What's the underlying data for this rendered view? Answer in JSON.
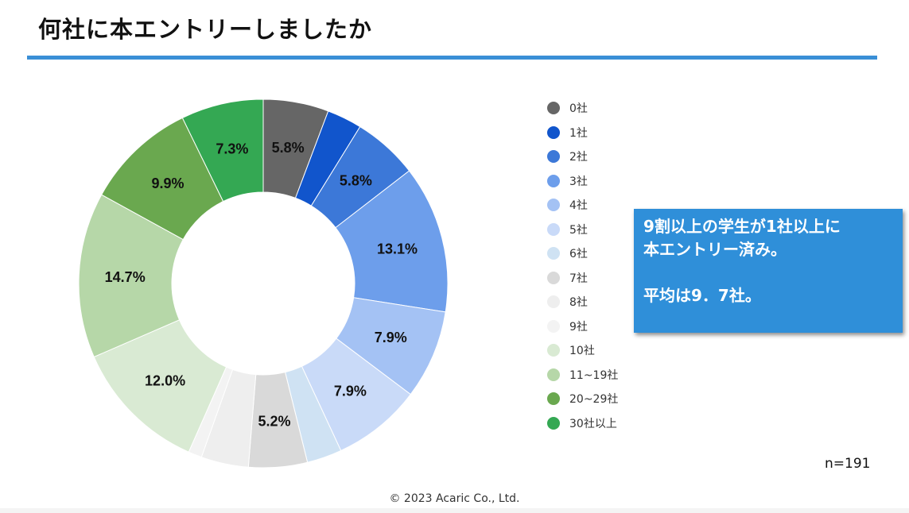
{
  "header": {
    "title": "何社に本エントリーしましたか"
  },
  "callout": {
    "line1": "9割以上の学生が1社以上に",
    "line2": "本エントリー済み。",
    "line3": "平均は9．7社。"
  },
  "sample_size": "n=191",
  "footer": {
    "copyright": "© 2023 Acaric Co., Ltd."
  },
  "chart_data": {
    "type": "pie",
    "subtype": "donut",
    "title": "何社に本エントリーしましたか",
    "legend_position": "right",
    "categories": [
      "0社",
      "1社",
      "2社",
      "3社",
      "4社",
      "5社",
      "6社",
      "7社",
      "8社",
      "9社",
      "10社",
      "11~19社",
      "20~29社",
      "30社以上"
    ],
    "values": [
      5.8,
      3.1,
      5.8,
      13.1,
      7.9,
      7.9,
      3.1,
      5.2,
      4.2,
      1.2,
      12.0,
      14.7,
      9.9,
      7.3
    ],
    "value_labels": [
      "5.8%",
      "",
      "5.8%",
      "13.1%",
      "7.9%",
      "7.9%",
      "",
      "5.2%",
      "",
      "",
      "12.0%",
      "14.7%",
      "9.9%",
      "7.3%"
    ],
    "unit": "%",
    "colors": [
      "#666666",
      "#1155cc",
      "#3c78d8",
      "#6d9eeb",
      "#a4c2f4",
      "#c9daf8",
      "#cfe2f3",
      "#d9d9d9",
      "#eeeeee",
      "#f3f3f3",
      "#d9ead3",
      "#b6d7a8",
      "#6aa84f",
      "#34a853"
    ]
  }
}
